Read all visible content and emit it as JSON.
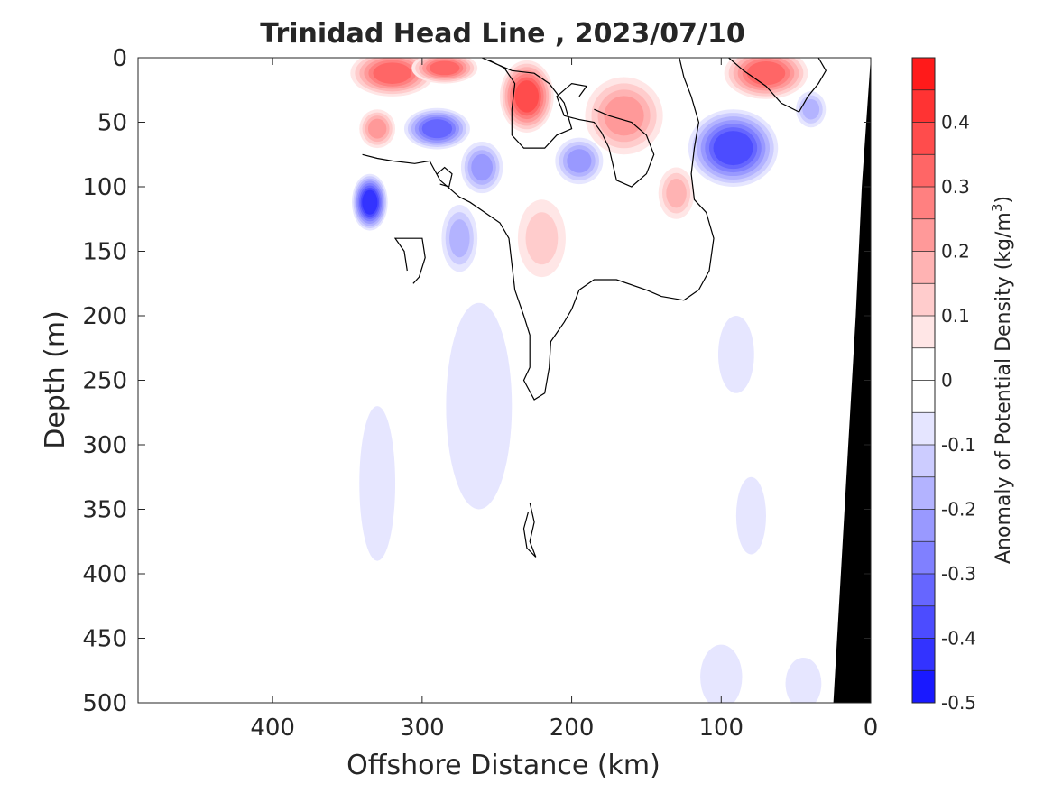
{
  "chart_data": {
    "type": "heatmap",
    "title": "Trinidad Head Line , 2023/07/10",
    "xlabel": "Offshore Distance (km)",
    "ylabel": "Depth (m)",
    "xlim": [
      490,
      0
    ],
    "ylim": [
      0,
      500
    ],
    "x_ticks": [
      400,
      300,
      200,
      100,
      0
    ],
    "y_ticks": [
      0,
      50,
      100,
      150,
      200,
      250,
      300,
      350,
      400,
      450,
      500
    ],
    "x_tick_labels": [
      "400",
      "300",
      "200",
      "100",
      "0"
    ],
    "y_tick_labels": [
      "0",
      "50",
      "100",
      "150",
      "200",
      "250",
      "300",
      "350",
      "400",
      "450",
      "500"
    ],
    "colorbar": {
      "label": "Anomaly of Potential Density (kg/m",
      "label_sup": "3",
      "label_close": ")",
      "range": [
        -0.5,
        0.5
      ],
      "step": 0.05,
      "ticks": [
        0.4,
        0.3,
        0.2,
        0.1,
        0,
        -0.1,
        -0.2,
        -0.3,
        -0.4,
        -0.5
      ],
      "tick_labels": [
        "0.4",
        "0.3",
        "0.2",
        "0.1",
        "0",
        "-0.1",
        "-0.2",
        "-0.3",
        "-0.4",
        "-0.5"
      ],
      "positive_color": "#ff0000",
      "negative_color": "#0000ff",
      "neutral_color": "#ffffff"
    },
    "data_extent_km": [
      0,
      340
    ],
    "features": [
      {
        "x": 320,
        "y": 12,
        "value": 0.3,
        "rx": 28,
        "ry": 18
      },
      {
        "x": 285,
        "y": 8,
        "value": 0.3,
        "rx": 22,
        "ry": 12
      },
      {
        "x": 230,
        "y": 30,
        "value": 0.35,
        "rx": 18,
        "ry": 28
      },
      {
        "x": 330,
        "y": 55,
        "value": 0.2,
        "rx": 12,
        "ry": 15
      },
      {
        "x": 165,
        "y": 45,
        "value": 0.2,
        "rx": 26,
        "ry": 30
      },
      {
        "x": 130,
        "y": 105,
        "value": 0.15,
        "rx": 12,
        "ry": 20
      },
      {
        "x": 70,
        "y": 12,
        "value": 0.3,
        "rx": 28,
        "ry": 20
      },
      {
        "x": 220,
        "y": 140,
        "value": 0.1,
        "rx": 16,
        "ry": 30
      },
      {
        "x": 335,
        "y": 112,
        "value": -0.4,
        "rx": 12,
        "ry": 22
      },
      {
        "x": 290,
        "y": 55,
        "value": -0.3,
        "rx": 22,
        "ry": 16
      },
      {
        "x": 260,
        "y": 85,
        "value": -0.2,
        "rx": 14,
        "ry": 20
      },
      {
        "x": 275,
        "y": 140,
        "value": -0.15,
        "rx": 12,
        "ry": 26
      },
      {
        "x": 195,
        "y": 80,
        "value": -0.2,
        "rx": 16,
        "ry": 18
      },
      {
        "x": 92,
        "y": 70,
        "value": -0.35,
        "rx": 30,
        "ry": 30
      },
      {
        "x": 40,
        "y": 40,
        "value": -0.15,
        "rx": 10,
        "ry": 14
      },
      {
        "x": 262,
        "y": 270,
        "value": -0.07,
        "rx": 22,
        "ry": 80
      },
      {
        "x": 90,
        "y": 230,
        "value": -0.07,
        "rx": 12,
        "ry": 30
      },
      {
        "x": 80,
        "y": 355,
        "value": -0.07,
        "rx": 10,
        "ry": 30
      },
      {
        "x": 100,
        "y": 480,
        "value": -0.07,
        "rx": 14,
        "ry": 25
      },
      {
        "x": 45,
        "y": 485,
        "value": -0.07,
        "rx": 12,
        "ry": 20
      },
      {
        "x": 330,
        "y": 330,
        "value": -0.06,
        "rx": 12,
        "ry": 60
      }
    ],
    "zero_contours": [
      [
        [
          340,
          75
        ],
        [
          330,
          78
        ],
        [
          320,
          80
        ],
        [
          305,
          82
        ],
        [
          295,
          80
        ],
        [
          288,
          95
        ],
        [
          275,
          108
        ],
        [
          268,
          112
        ],
        [
          258,
          120
        ],
        [
          248,
          128
        ],
        [
          242,
          140
        ],
        [
          240,
          160
        ],
        [
          238,
          180
        ],
        [
          232,
          200
        ],
        [
          228,
          215
        ],
        [
          228,
          240
        ],
        [
          232,
          250
        ],
        [
          225,
          265
        ],
        [
          218,
          260
        ],
        [
          215,
          240
        ],
        [
          214,
          220
        ],
        [
          205,
          205
        ],
        [
          200,
          195
        ],
        [
          195,
          180
        ],
        [
          185,
          172
        ],
        [
          170,
          172
        ],
        [
          150,
          180
        ],
        [
          140,
          185
        ],
        [
          125,
          188
        ],
        [
          115,
          180
        ],
        [
          108,
          165
        ],
        [
          105,
          140
        ],
        [
          110,
          120
        ],
        [
          118,
          110
        ],
        [
          120,
          90
        ],
        [
          118,
          70
        ],
        [
          115,
          50
        ],
        [
          120,
          30
        ],
        [
          125,
          15
        ],
        [
          128,
          0
        ]
      ],
      [
        [
          260,
          0
        ],
        [
          250,
          5
        ],
        [
          240,
          10
        ],
        [
          225,
          12
        ],
        [
          215,
          20
        ],
        [
          205,
          35
        ],
        [
          200,
          55
        ],
        [
          210,
          60
        ],
        [
          218,
          70
        ],
        [
          232,
          70
        ],
        [
          240,
          60
        ],
        [
          240,
          40
        ],
        [
          238,
          20
        ],
        [
          245,
          8
        ],
        [
          255,
          2
        ]
      ],
      [
        [
          195,
          30
        ],
        [
          190,
          22
        ],
        [
          200,
          20
        ],
        [
          210,
          30
        ],
        [
          205,
          45
        ],
        [
          195,
          48
        ],
        [
          185,
          50
        ],
        [
          180,
          58
        ],
        [
          175,
          70
        ],
        [
          172,
          85
        ],
        [
          170,
          95
        ],
        [
          160,
          100
        ],
        [
          150,
          90
        ],
        [
          145,
          75
        ],
        [
          150,
          60
        ],
        [
          160,
          50
        ],
        [
          175,
          45
        ],
        [
          185,
          40
        ]
      ],
      [
        [
          95,
          0
        ],
        [
          85,
          10
        ],
        [
          70,
          22
        ],
        [
          60,
          35
        ],
        [
          48,
          42
        ],
        [
          42,
          30
        ],
        [
          35,
          20
        ],
        [
          30,
          10
        ],
        [
          35,
          0
        ]
      ],
      [
        [
          310,
          165
        ],
        [
          312,
          150
        ],
        [
          318,
          140
        ],
        [
          300,
          140
        ],
        [
          298,
          155
        ],
        [
          302,
          170
        ],
        [
          306,
          175
        ]
      ],
      [
        [
          290,
          90
        ],
        [
          285,
          85
        ],
        [
          280,
          90
        ],
        [
          282,
          100
        ],
        [
          288,
          98
        ]
      ],
      [
        [
          228,
          345
        ],
        [
          225,
          360
        ],
        [
          228,
          375
        ],
        [
          224,
          387
        ],
        [
          230,
          380
        ],
        [
          232,
          365
        ],
        [
          229,
          352
        ]
      ]
    ],
    "bathymetry": [
      [
        25,
        500
      ],
      [
        20,
        400
      ],
      [
        15,
        300
      ],
      [
        10,
        200
      ],
      [
        6,
        100
      ],
      [
        0,
        0
      ]
    ]
  }
}
